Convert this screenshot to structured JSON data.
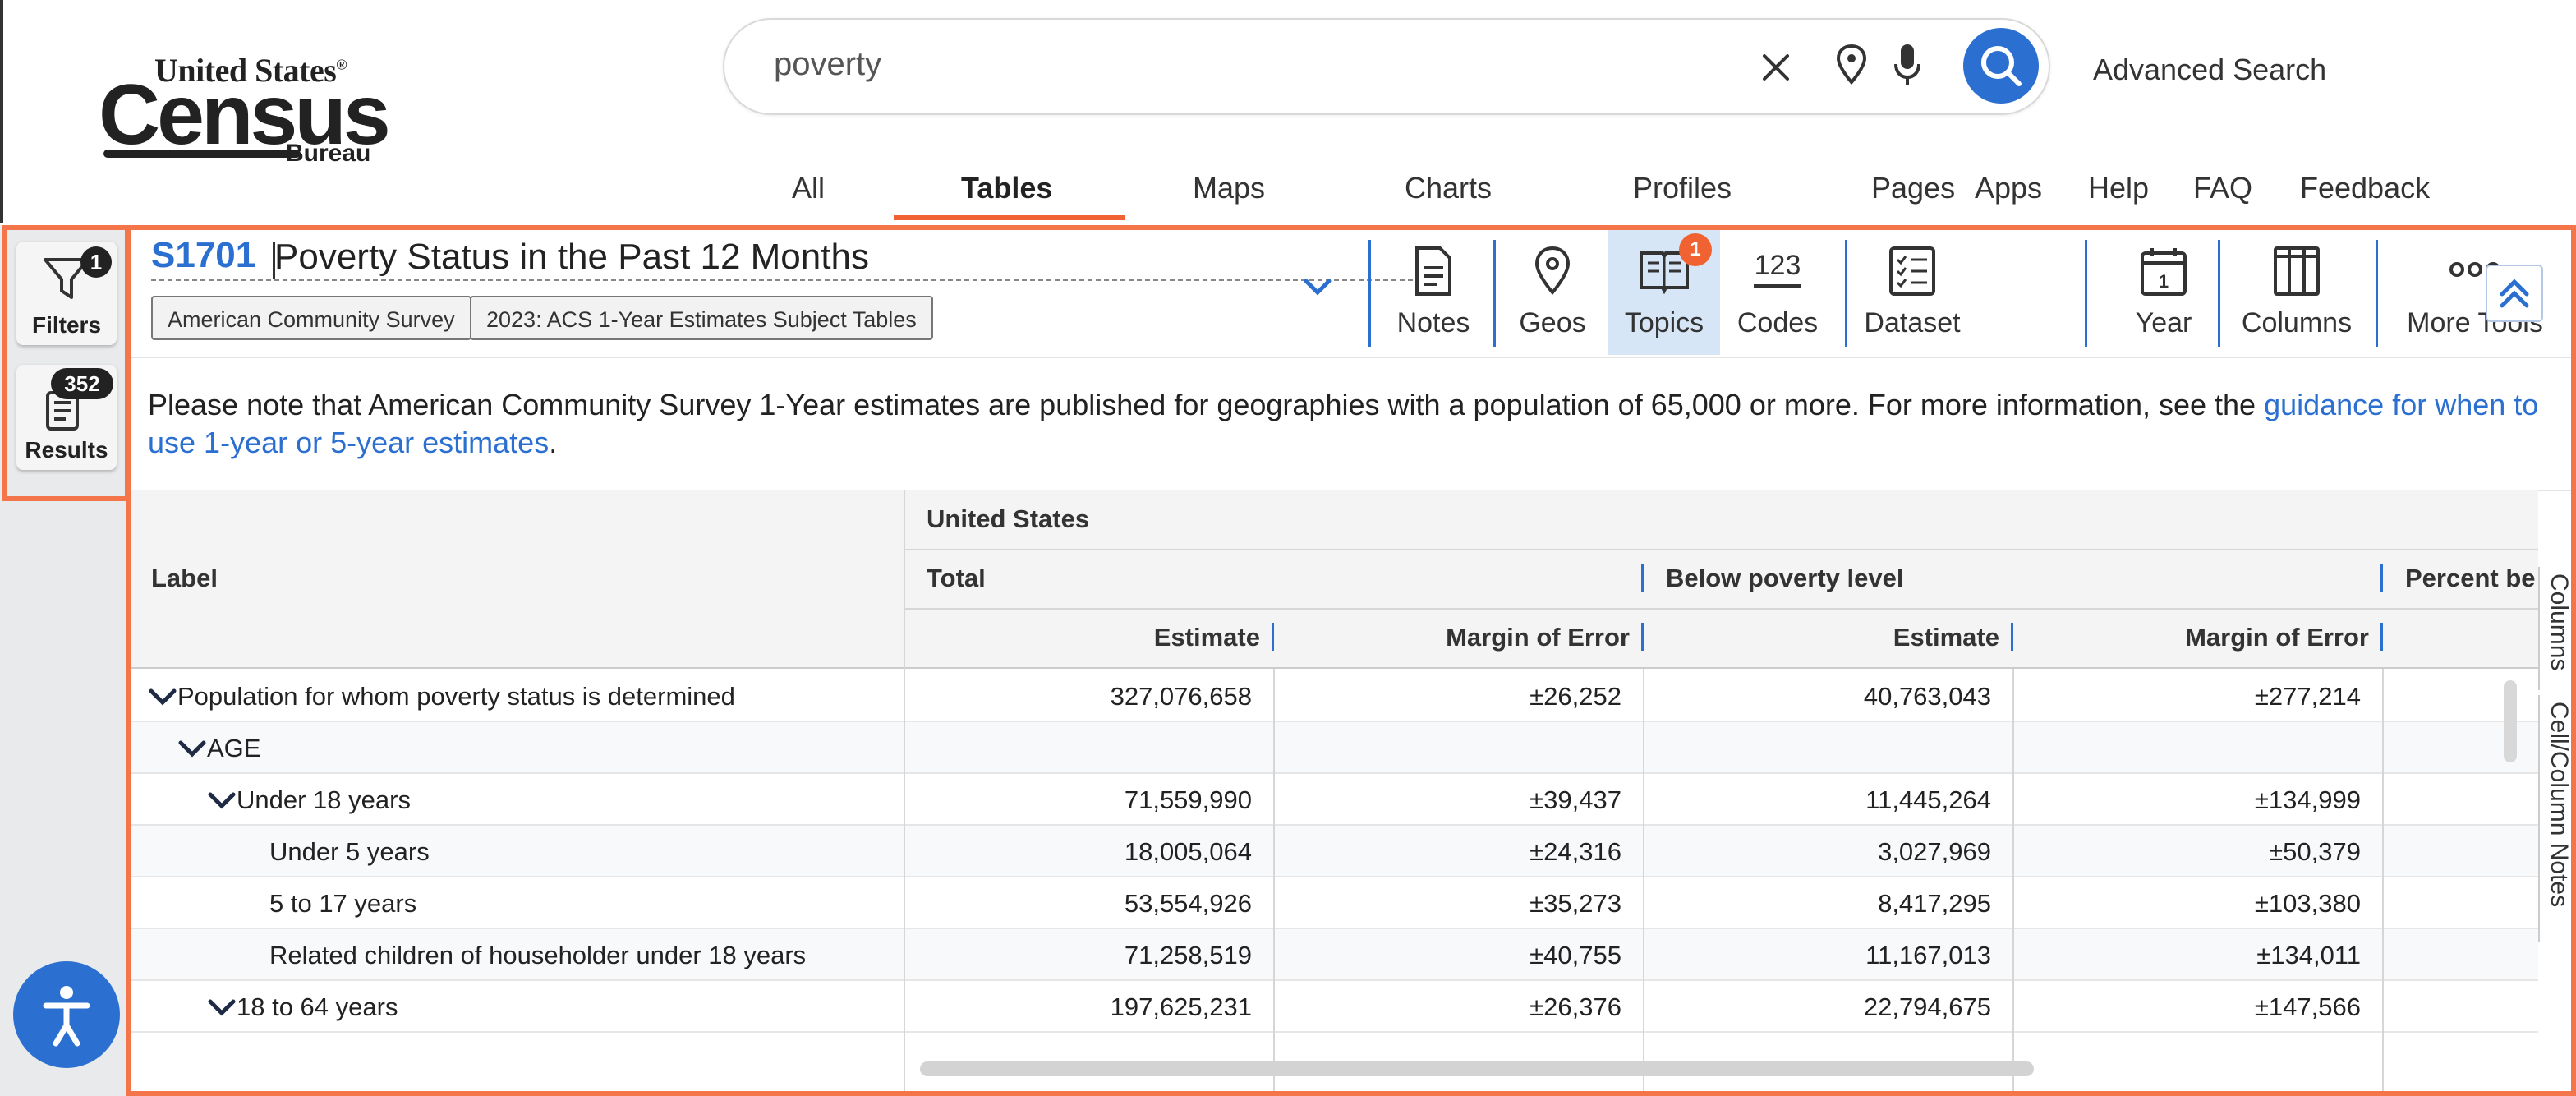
{
  "brand": {
    "logo_line1": "United States",
    "logo_line2": "Census",
    "logo_line3": "Bureau",
    "accent": "#2b6fd1",
    "highlight": "#f4754a"
  },
  "search": {
    "query": "poverty",
    "advanced_label": "Advanced Search",
    "icons": [
      "close-icon",
      "location-pin-icon",
      "microphone-icon",
      "search-icon"
    ]
  },
  "nav": {
    "items": [
      {
        "label": "All"
      },
      {
        "label": "Tables",
        "active": true
      },
      {
        "label": "Maps"
      },
      {
        "label": "Charts"
      },
      {
        "label": "Profiles"
      },
      {
        "label": "Pages"
      },
      {
        "label": "Apps"
      },
      {
        "label": "Help"
      },
      {
        "label": "FAQ"
      },
      {
        "label": "Feedback"
      }
    ]
  },
  "sidebar": {
    "filters_label": "Filters",
    "filters_count": "1",
    "results_label": "Results",
    "results_count": "352"
  },
  "table_header": {
    "code": "S1701",
    "title": "Poverty Status in the Past 12 Months",
    "tags": [
      "American Community Survey",
      "2023: ACS 1-Year Estimates Subject Tables"
    ]
  },
  "tools": [
    {
      "label": "Notes",
      "icon": "notes-icon"
    },
    {
      "label": "Geos",
      "icon": "location-pin-icon"
    },
    {
      "label": "Topics",
      "icon": "book-icon",
      "active": true,
      "badge": "1"
    },
    {
      "label": "Codes",
      "icon": "codes-icon"
    },
    {
      "label": "Dataset",
      "icon": "checklist-icon"
    },
    {
      "label": "Year",
      "icon": "calendar-icon"
    },
    {
      "label": "Columns",
      "icon": "columns-icon"
    },
    {
      "label": "More Tools",
      "icon": "more-icon"
    }
  ],
  "notice": {
    "text": "Please note that American Community Survey 1-Year estimates are published for geographies with a population of 65,000 or more. For more information, see the ",
    "link": "guidance for when to use 1-year or 5-year estimates",
    "end": "."
  },
  "grid": {
    "label_header": "Label",
    "geo_header": "United States",
    "groups": [
      "Total",
      "Below poverty level",
      "Percent be"
    ],
    "subcols": [
      "Estimate",
      "Margin of Error",
      "Estimate",
      "Margin of Error"
    ],
    "rows": [
      {
        "label": "Population for whom poverty status is determined",
        "values": [
          "327,076,658",
          "±26,252",
          "40,763,043",
          "±277,214"
        ]
      },
      {
        "label": "AGE",
        "values": [
          "",
          "",
          "",
          ""
        ]
      },
      {
        "label": "Under 18 years",
        "values": [
          "71,559,990",
          "±39,437",
          "11,445,264",
          "±134,999"
        ]
      },
      {
        "label": "Under 5 years",
        "values": [
          "18,005,064",
          "±24,316",
          "3,027,969",
          "±50,379"
        ]
      },
      {
        "label": "5 to 17 years",
        "values": [
          "53,554,926",
          "±35,273",
          "8,417,295",
          "±103,380"
        ]
      },
      {
        "label": "Related children of householder under 18 years",
        "values": [
          "71,258,519",
          "±40,755",
          "11,167,013",
          "±134,011"
        ]
      },
      {
        "label": "18 to 64 years",
        "values": [
          "197,625,231",
          "±26,376",
          "22,794,675",
          "±147,566"
        ]
      }
    ]
  },
  "side_tabs": [
    "Columns",
    "Cell/Column Notes"
  ]
}
